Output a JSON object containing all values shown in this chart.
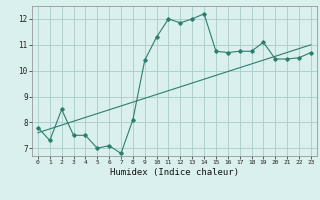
{
  "title": "",
  "xlabel": "Humidex (Indice chaleur)",
  "ylabel": "",
  "background_color": "#daf0ee",
  "grid_color": "#aacccc",
  "line_color": "#2e7d6e",
  "x_ticks": [
    0,
    1,
    2,
    3,
    4,
    5,
    6,
    7,
    8,
    9,
    10,
    11,
    12,
    13,
    14,
    15,
    16,
    17,
    18,
    19,
    20,
    21,
    22,
    23
  ],
  "y_ticks": [
    7,
    8,
    9,
    10,
    11,
    12
  ],
  "ylim": [
    6.7,
    12.5
  ],
  "xlim": [
    -0.5,
    23.5
  ],
  "series1_x": [
    0,
    1,
    2,
    3,
    4,
    5,
    6,
    7,
    8,
    9,
    10,
    11,
    12,
    13,
    14,
    15,
    16,
    17,
    18,
    19,
    20,
    21,
    22,
    23
  ],
  "series1_y": [
    7.8,
    7.3,
    8.5,
    7.5,
    7.5,
    7.0,
    7.1,
    6.8,
    8.1,
    10.4,
    11.3,
    12.0,
    11.85,
    12.0,
    12.2,
    10.75,
    10.7,
    10.75,
    10.75,
    11.1,
    10.45,
    10.45,
    10.5,
    10.7
  ],
  "series2_x": [
    0,
    23
  ],
  "series2_y": [
    7.6,
    11.0
  ],
  "marker_size": 1.8,
  "linewidth": 0.8
}
